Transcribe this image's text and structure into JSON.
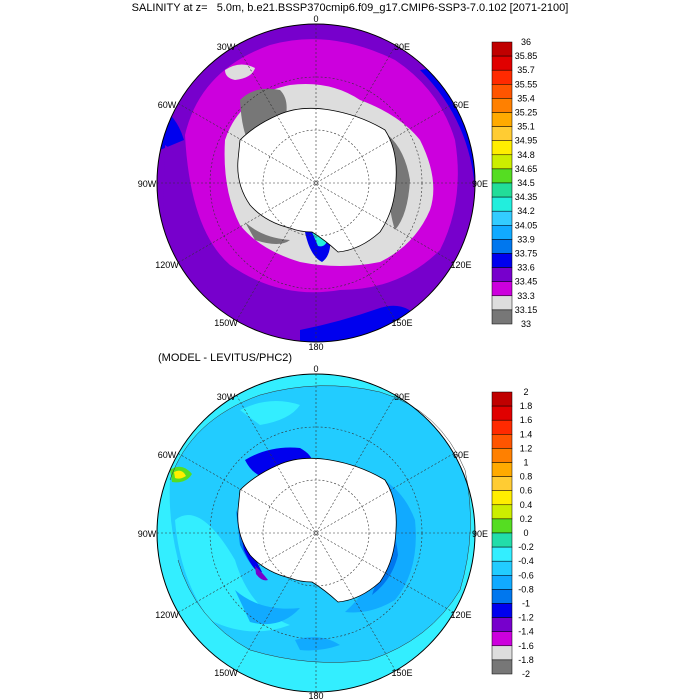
{
  "title": "SALINITY at z=   5.0m, b.e21.BSSP370cmip6.f09_g17.CMIP6-SSP3-7.0.102 [2071-2100]",
  "subtitle": "(MODEL - LEVITUS/PHC2)",
  "longitude_labels": [
    "0",
    "30E",
    "60E",
    "90E",
    "120E",
    "150E",
    "180",
    "150W",
    "120W",
    "90W",
    "60W",
    "30W"
  ],
  "top_map": {
    "colorbar_labels": [
      "36",
      "35.85",
      "35.7",
      "35.55",
      "35.4",
      "35.25",
      "35.1",
      "34.95",
      "34.8",
      "34.65",
      "34.5",
      "34.35",
      "34.2",
      "34.05",
      "33.9",
      "33.75",
      "33.6",
      "33.45",
      "33.3",
      "33.15",
      "33"
    ],
    "colorbar_colors": [
      "#c00000",
      "#e00000",
      "#ff2a00",
      "#ff5500",
      "#ff8000",
      "#ffaa00",
      "#ffcc33",
      "#ffee00",
      "#ccee00",
      "#55dd22",
      "#22dd99",
      "#22eedd",
      "#33ccff",
      "#11aaff",
      "#0077ee",
      "#0000ee",
      "#7700cc",
      "#cc00dd",
      "#dddddd",
      "#777777"
    ]
  },
  "bottom_map": {
    "colorbar_labels": [
      "2",
      "1.8",
      "1.6",
      "1.4",
      "1.2",
      "1",
      "0.8",
      "0.6",
      "0.4",
      "0.2",
      "0",
      "-0.2",
      "-0.4",
      "-0.6",
      "-0.8",
      "-1",
      "-1.2",
      "-1.4",
      "-1.6",
      "-1.8",
      "-2"
    ],
    "colorbar_colors": [
      "#c00000",
      "#e00000",
      "#ff2a00",
      "#ff5500",
      "#ff8000",
      "#ffaa00",
      "#ffcc33",
      "#ffee00",
      "#ccee00",
      "#55dd22",
      "#22ddaa",
      "#33eeff",
      "#22ccff",
      "#11aaff",
      "#0077ee",
      "#0000ee",
      "#7700cc",
      "#cc00dd",
      "#dddddd",
      "#777777"
    ]
  }
}
